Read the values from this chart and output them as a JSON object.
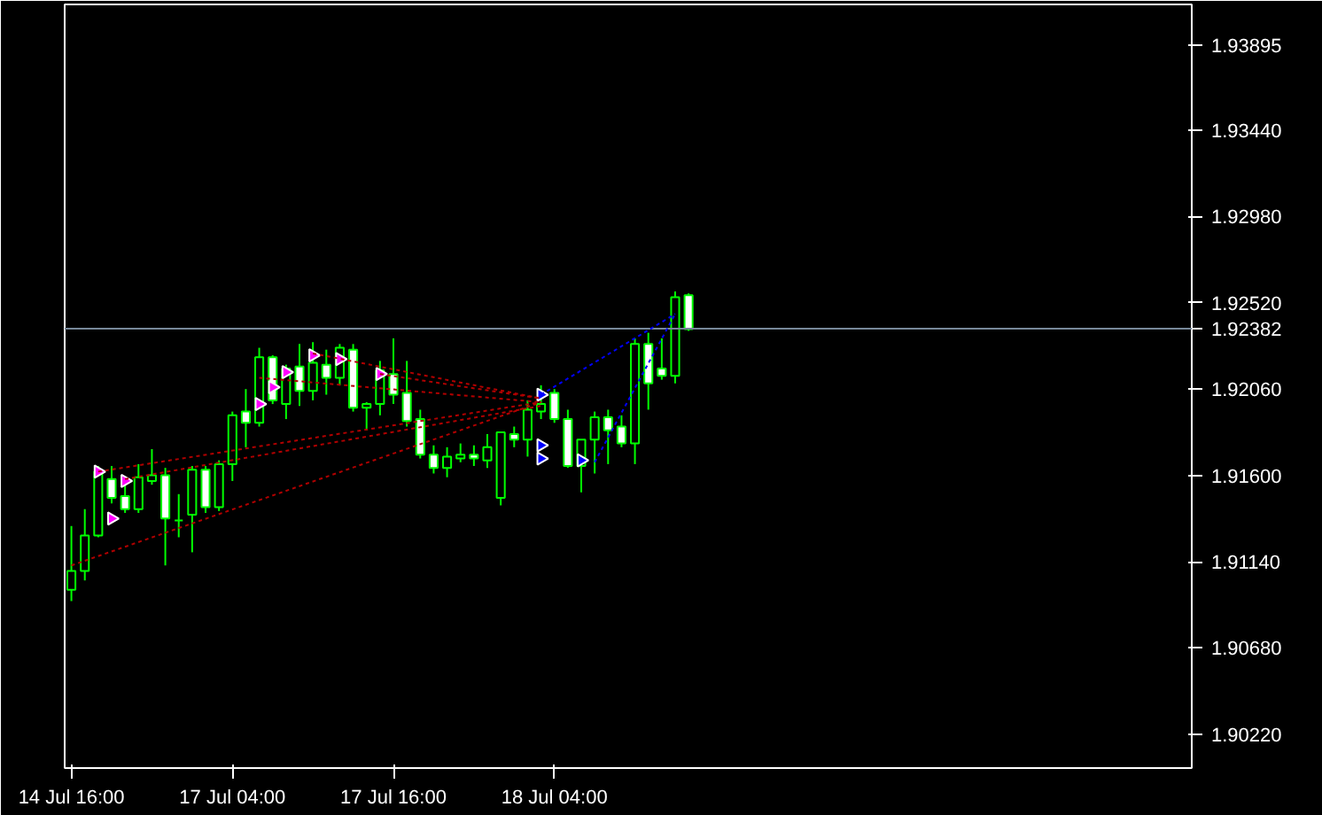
{
  "chart_data": {
    "type": "candlestick",
    "color": "#00ff00",
    "categories": [
      "14 Jul 16:00",
      null,
      null,
      null,
      null,
      null,
      null,
      null,
      null,
      null,
      null,
      null,
      "17 Jul 04:00",
      null,
      null,
      null,
      null,
      null,
      null,
      null,
      null,
      null,
      null,
      null,
      "17 Jul 16:00",
      null,
      null,
      null,
      null,
      null,
      null,
      null,
      null,
      null,
      null,
      null,
      "18 Jul 04:00",
      null,
      null,
      null,
      null,
      null,
      null,
      null,
      null,
      null,
      null,
      null,
      null,
      null,
      null,
      null,
      null,
      null,
      null,
      null,
      null,
      null,
      null,
      null,
      null,
      null,
      null,
      null,
      null,
      null,
      null,
      null,
      null,
      null,
      null,
      null,
      null,
      null,
      null,
      null,
      null,
      null,
      null,
      null,
      null,
      null,
      null,
      null
    ],
    "ohlc": [
      [
        1.9099,
        1.9133,
        1.9093,
        1.9109
      ],
      [
        1.9109,
        1.9142,
        1.9104,
        1.9128
      ],
      [
        1.9128,
        1.9165,
        1.9127,
        1.9162
      ],
      [
        1.9158,
        1.9165,
        1.9145,
        1.9148
      ],
      [
        1.9149,
        1.9156,
        1.914,
        1.9142
      ],
      [
        1.9142,
        1.9166,
        1.914,
        1.9159
      ],
      [
        1.9157,
        1.9174,
        1.9155,
        1.916
      ],
      [
        1.916,
        1.9164,
        1.9112,
        1.9137
      ],
      [
        1.9136,
        1.915,
        1.9127,
        1.9136
      ],
      [
        1.9139,
        1.9165,
        1.9119,
        1.9163
      ],
      [
        1.9163,
        1.9165,
        1.914,
        1.9143
      ],
      [
        1.9143,
        1.9168,
        1.9141,
        1.9166
      ],
      [
        1.9166,
        1.9194,
        1.9157,
        1.9192
      ],
      [
        1.9194,
        1.9206,
        1.9175,
        1.9188
      ],
      [
        1.9188,
        1.9228,
        1.9186,
        1.9223
      ],
      [
        1.9223,
        1.9224,
        1.9198,
        1.92
      ],
      [
        1.9198,
        1.9219,
        1.919,
        1.9217
      ],
      [
        1.9218,
        1.923,
        1.9197,
        1.9205
      ],
      [
        1.9205,
        1.9231,
        1.92,
        1.922
      ],
      [
        1.9219,
        1.9227,
        1.9203,
        1.9212
      ],
      [
        1.9212,
        1.923,
        1.9208,
        1.9228
      ],
      [
        1.9227,
        1.923,
        1.9194,
        1.9196
      ],
      [
        1.9196,
        1.9199,
        1.9184,
        1.9198
      ],
      [
        1.9198,
        1.9221,
        1.9192,
        1.9216
      ],
      [
        1.9214,
        1.9233,
        1.9198,
        1.9203
      ],
      [
        1.9204,
        1.9221,
        1.9186,
        1.9189
      ],
      [
        1.919,
        1.9195,
        1.9169,
        1.9171
      ],
      [
        1.9171,
        1.9176,
        1.9161,
        1.9164
      ],
      [
        1.9164,
        1.9175,
        1.9159,
        1.917
      ],
      [
        1.9169,
        1.9177,
        1.9167,
        1.9171
      ],
      [
        1.9171,
        1.9176,
        1.9165,
        1.9169
      ],
      [
        1.9168,
        1.9182,
        1.9164,
        1.9175
      ],
      [
        1.9148,
        1.9183,
        1.9144,
        1.9183
      ],
      [
        1.9182,
        1.9186,
        1.9175,
        1.9179
      ],
      [
        1.9179,
        1.92,
        1.917,
        1.9195
      ],
      [
        1.9194,
        1.9208,
        1.919,
        1.9198
      ],
      [
        1.9204,
        1.9206,
        1.9188,
        1.919
      ],
      [
        1.919,
        1.9195,
        1.9164,
        1.9165
      ],
      [
        1.9165,
        1.9179,
        1.9151,
        1.9179
      ],
      [
        1.9179,
        1.9194,
        1.9161,
        1.9191
      ],
      [
        1.9191,
        1.9195,
        1.9166,
        1.9184
      ],
      [
        1.9186,
        1.9192,
        1.9175,
        1.9177
      ],
      [
        1.9177,
        1.9233,
        1.9166,
        1.923
      ],
      [
        1.923,
        1.9236,
        1.9195,
        1.9209
      ],
      [
        1.9217,
        1.9233,
        1.9211,
        1.9213
      ],
      [
        1.9213,
        1.9258,
        1.9209,
        1.9255
      ],
      [
        1.9256,
        1.9257,
        1.9237,
        1.9238
      ],
      null,
      null,
      null,
      null,
      null,
      null,
      null,
      null,
      null,
      null,
      null,
      null,
      null,
      null,
      null,
      null,
      null,
      null,
      null,
      null,
      null,
      null,
      null,
      null,
      null,
      null,
      null,
      null,
      null,
      null,
      null,
      null,
      null,
      null,
      null,
      null,
      null
    ],
    "ylim": [
      1.9004,
      1.9411
    ],
    "yticks": [
      {
        "value": 1.9022,
        "label": "1.90220"
      },
      {
        "value": 1.9068,
        "label": "1.90680"
      },
      {
        "value": 1.9114,
        "label": "1.91140"
      },
      {
        "value": 1.916,
        "label": "1.91600"
      },
      {
        "value": 1.9206,
        "label": "1.92060"
      },
      {
        "value": 1.9252,
        "label": "1.92520"
      },
      {
        "value": 1.9298,
        "label": "1.92980"
      },
      {
        "value": 1.9344,
        "label": "1.93440"
      },
      {
        "value": 1.93895,
        "label": "1.93895"
      }
    ],
    "grid": false,
    "ref_lines": [
      {
        "axis": "y",
        "value": 1.92382,
        "label": "1.92382",
        "color": "#778899"
      }
    ],
    "series": [
      {
        "type": "line",
        "color": "#b00000",
        "line_style": "dashed",
        "values": [
          1.9112,
          null,
          null,
          null,
          null,
          null,
          null,
          null,
          null,
          null,
          null,
          null,
          null,
          null,
          null,
          null,
          null,
          null,
          null,
          null,
          null,
          null,
          null,
          null,
          null,
          null,
          null,
          null,
          null,
          null,
          null,
          null,
          null,
          null,
          null,
          1.9199,
          null,
          null,
          null,
          null,
          null,
          null,
          null,
          null,
          null,
          null,
          null,
          null,
          null,
          null,
          null,
          null,
          null,
          null,
          null,
          null,
          null,
          null,
          null,
          null,
          null,
          null,
          null,
          null,
          null,
          null,
          null,
          null,
          null,
          null,
          null,
          null,
          null,
          null,
          null,
          null,
          null,
          null,
          null,
          null,
          null,
          null,
          null,
          null
        ]
      },
      {
        "type": "line",
        "color": "#b00000",
        "line_style": "dashed",
        "values": [
          null,
          null,
          1.9162,
          null,
          null,
          null,
          null,
          null,
          null,
          null,
          null,
          null,
          null,
          null,
          null,
          null,
          null,
          null,
          null,
          null,
          null,
          null,
          null,
          null,
          null,
          null,
          null,
          null,
          null,
          null,
          null,
          null,
          null,
          null,
          null,
          1.9199,
          null,
          null,
          null,
          null,
          null,
          null,
          null,
          null,
          null,
          null,
          null,
          null,
          null,
          null,
          null,
          null,
          null,
          null,
          null,
          null,
          null,
          null,
          null,
          null,
          null,
          null,
          null,
          null,
          null,
          null,
          null,
          null,
          null,
          null,
          null,
          null,
          null,
          null,
          null,
          null,
          null,
          null,
          null,
          null,
          null,
          null,
          null,
          null
        ]
      },
      {
        "type": "line",
        "color": "#b00000",
        "line_style": "dashed",
        "values": [
          null,
          null,
          null,
          null,
          1.9158,
          null,
          null,
          null,
          null,
          null,
          null,
          null,
          null,
          null,
          null,
          null,
          null,
          null,
          null,
          null,
          null,
          null,
          null,
          null,
          null,
          null,
          null,
          null,
          null,
          null,
          null,
          null,
          null,
          null,
          null,
          1.9197,
          null,
          null,
          null,
          null,
          null,
          null,
          null,
          null,
          null,
          null,
          null,
          null,
          null,
          null,
          null,
          null,
          null,
          null,
          null,
          null,
          null,
          null,
          null,
          null,
          null,
          null,
          null,
          null,
          null,
          null,
          null,
          null,
          null,
          null,
          null,
          null,
          null,
          null,
          null,
          null,
          null,
          null,
          null,
          null,
          null,
          null,
          null,
          null
        ]
      },
      {
        "type": "line",
        "color": "#b00000",
        "line_style": "dashed",
        "values": [
          null,
          null,
          null,
          null,
          null,
          null,
          null,
          null,
          null,
          null,
          null,
          null,
          null,
          null,
          1.9212,
          null,
          null,
          null,
          null,
          null,
          null,
          null,
          null,
          null,
          null,
          null,
          null,
          null,
          null,
          null,
          null,
          null,
          null,
          null,
          null,
          1.9199,
          null,
          null,
          null,
          null,
          null,
          null,
          null,
          null,
          null,
          null,
          null,
          null,
          null,
          null,
          null,
          null,
          null,
          null,
          null,
          null,
          null,
          null,
          null,
          null,
          null,
          null,
          null,
          null,
          null,
          null,
          null,
          null,
          null,
          null,
          null,
          null,
          null,
          null,
          null,
          null,
          null,
          null,
          null,
          null,
          null,
          null,
          null,
          null
        ]
      },
      {
        "type": "line",
        "color": "#b00000",
        "line_style": "dashed",
        "values": [
          null,
          null,
          null,
          null,
          null,
          null,
          null,
          null,
          null,
          null,
          null,
          null,
          null,
          null,
          null,
          null,
          null,
          null,
          1.9225,
          null,
          null,
          null,
          null,
          null,
          null,
          null,
          null,
          null,
          null,
          null,
          null,
          null,
          null,
          null,
          null,
          1.9201,
          null,
          null,
          null,
          null,
          null,
          null,
          null,
          null,
          null,
          null,
          null,
          null,
          null,
          null,
          null,
          null,
          null,
          null,
          null,
          null,
          null,
          null,
          null,
          null,
          null,
          null,
          null,
          null,
          null,
          null,
          null,
          null,
          null,
          null,
          null,
          null,
          null,
          null,
          null,
          null,
          null,
          null,
          null,
          null,
          null,
          null,
          null,
          null
        ]
      },
      {
        "type": "line",
        "color": "#b00000",
        "line_style": "dashed",
        "values": [
          null,
          null,
          null,
          null,
          null,
          null,
          null,
          null,
          null,
          null,
          null,
          null,
          null,
          null,
          null,
          null,
          null,
          null,
          null,
          null,
          null,
          null,
          null,
          1.9214,
          null,
          null,
          null,
          null,
          null,
          null,
          null,
          null,
          null,
          null,
          null,
          1.9201,
          null,
          null,
          null,
          null,
          null,
          null,
          null,
          null,
          null,
          null,
          null,
          null,
          null,
          null,
          null,
          null,
          null,
          null,
          null,
          null,
          null,
          null,
          null,
          null,
          null,
          null,
          null,
          null,
          null,
          null,
          null,
          null,
          null,
          null,
          null,
          null,
          null,
          null,
          null,
          null,
          null,
          null,
          null,
          null,
          null,
          null,
          null,
          null
        ]
      },
      {
        "type": "line",
        "color": "#0000ff",
        "line_style": "dashed",
        "values": [
          null,
          null,
          null,
          null,
          null,
          null,
          null,
          null,
          null,
          null,
          null,
          null,
          null,
          null,
          null,
          null,
          null,
          null,
          null,
          null,
          null,
          null,
          null,
          null,
          null,
          null,
          null,
          null,
          null,
          null,
          null,
          null,
          null,
          null,
          null,
          1.9203,
          null,
          null,
          null,
          null,
          null,
          null,
          null,
          null,
          null,
          1.9246,
          null,
          null,
          null,
          null,
          null,
          null,
          null,
          null,
          null,
          null,
          null,
          null,
          null,
          null,
          null,
          null,
          null,
          null,
          null,
          null,
          null,
          null,
          null,
          null,
          null,
          null,
          null,
          null,
          null,
          null,
          null,
          null,
          null,
          null,
          null,
          null,
          null,
          null
        ]
      },
      {
        "type": "line",
        "color": "#0000ff",
        "line_style": "dashed",
        "values": [
          null,
          null,
          null,
          null,
          null,
          null,
          null,
          null,
          null,
          null,
          null,
          null,
          null,
          null,
          null,
          null,
          null,
          null,
          null,
          null,
          null,
          null,
          null,
          null,
          null,
          null,
          null,
          null,
          null,
          null,
          null,
          null,
          null,
          null,
          null,
          null,
          null,
          null,
          null,
          1.9167,
          null,
          null,
          null,
          null,
          null,
          1.9246,
          null,
          null,
          null,
          null,
          null,
          null,
          null,
          null,
          null,
          null,
          null,
          null,
          null,
          null,
          null,
          null,
          null,
          null,
          null,
          null,
          null,
          null,
          null,
          null,
          null,
          null,
          null,
          null,
          null,
          null,
          null,
          null,
          null,
          null,
          null,
          null,
          null,
          null
        ]
      },
      {
        "type": "scatter",
        "color": "#ff00ff",
        "marker": "triangle",
        "values": [
          null,
          null,
          1.9162,
          1.9137,
          1.9157,
          null,
          null,
          null,
          null,
          null,
          null,
          null,
          null,
          null,
          1.9198,
          1.9207,
          1.9215,
          null,
          1.9224,
          null,
          1.9222,
          null,
          null,
          1.9214,
          null,
          null,
          null,
          null,
          null,
          null,
          null,
          null,
          null,
          null,
          null,
          null,
          null,
          null,
          null,
          null,
          null,
          null,
          null,
          null,
          null,
          null,
          null,
          null,
          null,
          null,
          null,
          null,
          null,
          null,
          null,
          null,
          null,
          null,
          null,
          null,
          null,
          null,
          null,
          null,
          null,
          null,
          null,
          null,
          null,
          null,
          null,
          null,
          null,
          null,
          null,
          null,
          null,
          null,
          null,
          null,
          null,
          null,
          null,
          null
        ]
      },
      {
        "type": "scatter",
        "color": "#0000ff",
        "marker": "triangle",
        "values": [
          null,
          null,
          null,
          null,
          null,
          null,
          null,
          null,
          null,
          null,
          null,
          null,
          null,
          null,
          null,
          null,
          null,
          null,
          null,
          null,
          null,
          null,
          null,
          null,
          null,
          null,
          null,
          null,
          null,
          null,
          null,
          null,
          null,
          null,
          null,
          1.9203,
          null,
          null,
          1.9168,
          null,
          null,
          null,
          null,
          null,
          null,
          null,
          null,
          null,
          null,
          null,
          null,
          null,
          null,
          null,
          null,
          null,
          null,
          null,
          null,
          null,
          null,
          null,
          null,
          null,
          null,
          null,
          null,
          null,
          null,
          null,
          null,
          null,
          null,
          null,
          null,
          null,
          null,
          null,
          null,
          null,
          null,
          null,
          null,
          null
        ]
      },
      {
        "type": "scatter",
        "color": "#0000ff",
        "marker": "triangle",
        "values": [
          null,
          null,
          null,
          null,
          null,
          null,
          null,
          null,
          null,
          null,
          null,
          null,
          null,
          null,
          null,
          null,
          null,
          null,
          null,
          null,
          null,
          null,
          null,
          null,
          null,
          null,
          null,
          null,
          null,
          null,
          null,
          null,
          null,
          null,
          null,
          1.9176,
          null,
          null,
          null,
          null,
          null,
          null,
          null,
          null,
          null,
          null,
          null,
          null,
          null,
          null,
          null,
          null,
          null,
          null,
          null,
          null,
          null,
          null,
          null,
          null,
          null,
          null,
          null,
          null,
          null,
          null,
          null,
          null,
          null,
          null,
          null,
          null,
          null,
          null,
          null,
          null,
          null,
          null,
          null,
          null,
          null,
          null,
          null,
          null
        ]
      },
      {
        "type": "scatter",
        "color": "#0000ff",
        "marker": "triangle",
        "values": [
          null,
          null,
          null,
          null,
          null,
          null,
          null,
          null,
          null,
          null,
          null,
          null,
          null,
          null,
          null,
          null,
          null,
          null,
          null,
          null,
          null,
          null,
          null,
          null,
          null,
          null,
          null,
          null,
          null,
          null,
          null,
          null,
          null,
          null,
          null,
          1.9169,
          null,
          null,
          null,
          null,
          null,
          null,
          null,
          null,
          null,
          null,
          null,
          null,
          null,
          null,
          null,
          null,
          null,
          null,
          null,
          null,
          null,
          null,
          null,
          null,
          null,
          null,
          null,
          null,
          null,
          null,
          null,
          null,
          null,
          null,
          null,
          null,
          null,
          null,
          null,
          null,
          null,
          null,
          null,
          null,
          null,
          null,
          null,
          null
        ]
      }
    ]
  }
}
